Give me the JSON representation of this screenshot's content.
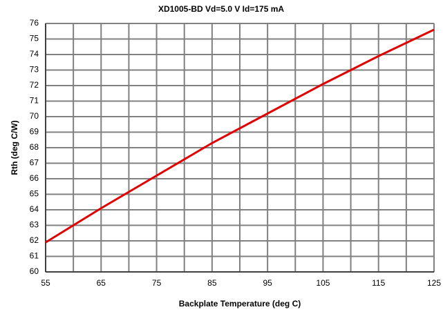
{
  "chart_data": {
    "type": "line",
    "title": "XD1005-BD Vd=5.0 V Id=175 mA",
    "x_label": "Backplate Temperature (deg C)",
    "y_label": "Rth (deg C/W)",
    "xlim": [
      55,
      125
    ],
    "xticks": [
      55,
      65,
      75,
      85,
      95,
      105,
      115,
      125
    ],
    "x_minor_ticks": [
      60,
      70,
      80,
      90,
      100,
      110,
      120
    ],
    "ylim": [
      60,
      76
    ],
    "yticks": [
      60,
      61,
      62,
      63,
      64,
      65,
      66,
      67,
      68,
      69,
      70,
      71,
      72,
      73,
      74,
      75,
      76
    ],
    "grid": true,
    "series": [
      {
        "color": "#e00000",
        "x": [
          55,
          65,
          75,
          85,
          95,
          105,
          115,
          125
        ],
        "values": [
          61.9,
          64.1,
          66.2,
          68.3,
          70.2,
          72.1,
          73.9,
          75.6
        ]
      }
    ]
  }
}
